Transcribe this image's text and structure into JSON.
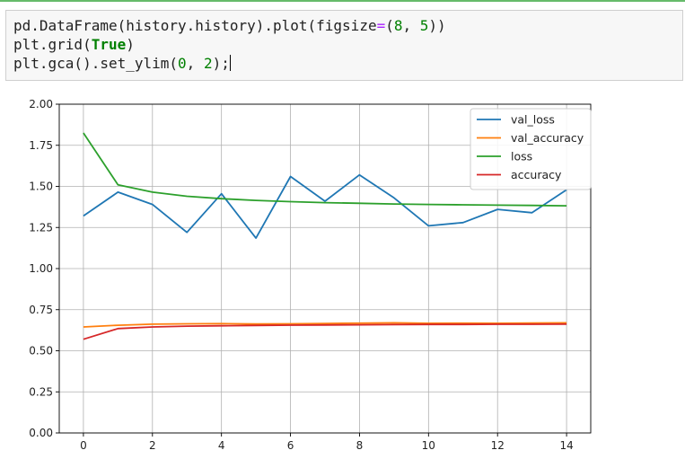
{
  "code_cell": {
    "line1_prefix": "pd.DataFrame(history.history).plot(figsize",
    "line1_eq": "=",
    "line1_open": "(",
    "line1_n1": "8",
    "line1_sep": ", ",
    "line1_n2": "5",
    "line1_close": "))",
    "line2_prefix": "plt.grid(",
    "line2_kw": "True",
    "line2_suffix": ")",
    "line3_prefix": "plt.gca().set_ylim(",
    "line3_n1": "0",
    "line3_sep": ", ",
    "line3_n2": "2",
    "line3_suffix": ");"
  },
  "chart_data": {
    "type": "line",
    "x": [
      0,
      1,
      2,
      3,
      4,
      5,
      6,
      7,
      8,
      9,
      10,
      11,
      12,
      13,
      14
    ],
    "xlim": [
      -0.7,
      14.7
    ],
    "ylim": [
      0,
      2
    ],
    "grid": true,
    "legend_position": "top-right",
    "xticks": [
      0,
      2,
      4,
      6,
      8,
      10,
      12,
      14
    ],
    "xtick_labels": [
      "0",
      "2",
      "4",
      "6",
      "8",
      "10",
      "12",
      "14"
    ],
    "yticks": [
      0,
      0.25,
      0.5,
      0.75,
      1.0,
      1.25,
      1.5,
      1.75,
      2.0
    ],
    "ytick_labels": [
      "0.00",
      "0.25",
      "0.50",
      "0.75",
      "1.00",
      "1.25",
      "1.50",
      "1.75",
      "2.00"
    ],
    "series": [
      {
        "name": "val_loss",
        "color": "#1f77b4",
        "values": [
          1.32,
          1.465,
          1.39,
          1.22,
          1.455,
          1.185,
          1.56,
          1.41,
          1.57,
          1.43,
          1.26,
          1.28,
          1.36,
          1.34,
          1.48
        ]
      },
      {
        "name": "val_accuracy",
        "color": "#ff7f0e",
        "values": [
          0.645,
          0.655,
          0.662,
          0.664,
          0.665,
          0.663,
          0.664,
          0.666,
          0.668,
          0.67,
          0.667,
          0.668,
          0.667,
          0.669,
          0.67
        ]
      },
      {
        "name": "loss",
        "color": "#2ca02c",
        "values": [
          1.825,
          1.51,
          1.465,
          1.44,
          1.425,
          1.415,
          1.407,
          1.401,
          1.397,
          1.393,
          1.39,
          1.388,
          1.386,
          1.384,
          1.382
        ]
      },
      {
        "name": "accuracy",
        "color": "#d62728",
        "values": [
          0.57,
          0.635,
          0.645,
          0.65,
          0.652,
          0.654,
          0.656,
          0.657,
          0.658,
          0.659,
          0.66,
          0.66,
          0.661,
          0.661,
          0.662
        ]
      }
    ]
  }
}
